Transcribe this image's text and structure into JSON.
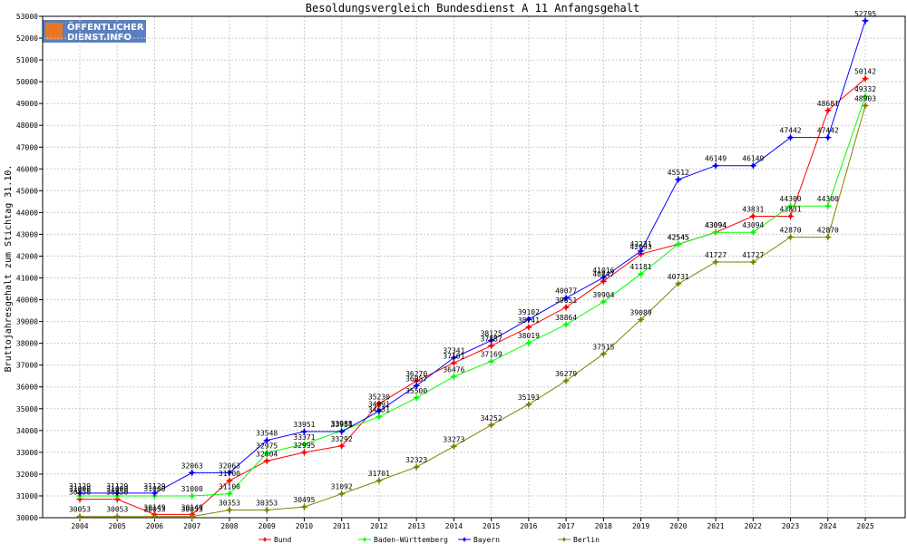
{
  "chart_data": {
    "type": "line",
    "title": "Besoldungsvergleich Bundesdienst A 11 Anfangsgehalt",
    "ylabel": "Bruttojahresgehalt zum Stichtag 31.10.",
    "xlabel": "",
    "x": [
      "2004",
      "2005",
      "2006",
      "2007",
      "2008",
      "2009",
      "2010",
      "2011",
      "2012",
      "2013",
      "2014",
      "2015",
      "2016",
      "2017",
      "2018",
      "2019",
      "2020",
      "2021",
      "2022",
      "2023",
      "2024",
      "2025"
    ],
    "ylim": [
      30000,
      53000
    ],
    "yticks": [
      30000,
      31000,
      32000,
      33000,
      34000,
      35000,
      36000,
      37000,
      38000,
      39000,
      40000,
      41000,
      42000,
      43000,
      44000,
      45000,
      46000,
      47000,
      48000,
      49000,
      50000,
      51000,
      52000,
      53000
    ],
    "grid": true,
    "legend_position": "bottom",
    "logo": {
      "line1": "ÖFFENTLICHER",
      "line2": "DIENST.INFO"
    },
    "series": [
      {
        "name": "Bund",
        "color": "#ff0000",
        "values": [
          30850,
          30850,
          30149,
          30149,
          31700,
          32604,
          32995,
          33292,
          35230,
          36270,
          37101,
          37887,
          38741,
          39651,
          40847,
          42093,
          42545,
          43094,
          43831,
          43831,
          48681,
          50142
        ]
      },
      {
        "name": "Baden-Württemberg",
        "color": "#00ff00",
        "values": [
          31000,
          31000,
          31000,
          31000,
          31100,
          32975,
          33371,
          33988,
          34631,
          35500,
          36476,
          37169,
          38019,
          38864,
          39904,
          41181,
          42545,
          43094,
          43094,
          44300,
          44300,
          49332
        ]
      },
      {
        "name": "Bayern",
        "color": "#0000ff",
        "values": [
          31129,
          31129,
          31129,
          32063,
          32063,
          33548,
          33951,
          33951,
          34891,
          36057,
          37341,
          38125,
          39102,
          40077,
          41016,
          42231,
          45512,
          46149,
          46149,
          47442,
          47442,
          52795
        ]
      },
      {
        "name": "Berlin",
        "color": "#808000",
        "values": [
          30053,
          30053,
          30053,
          30053,
          30353,
          30353,
          30495,
          31092,
          31701,
          32323,
          33273,
          34252,
          35193,
          36279,
          37515,
          39089,
          40731,
          41727,
          41727,
          42870,
          42870,
          48903
        ]
      }
    ]
  }
}
